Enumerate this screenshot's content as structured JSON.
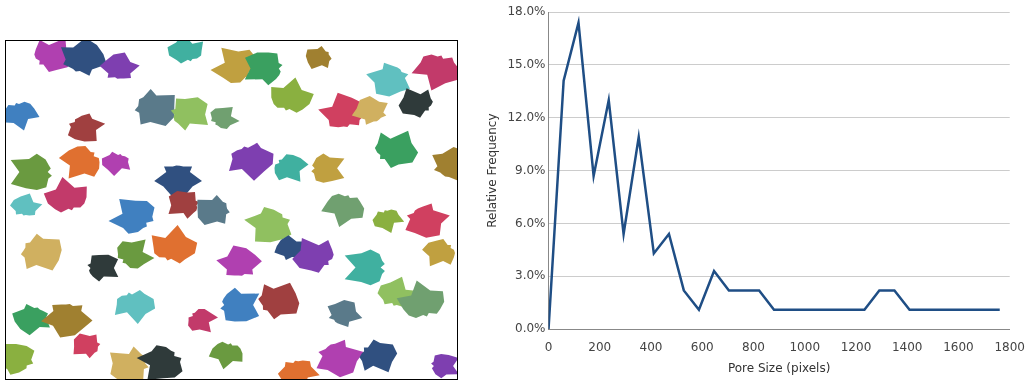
{
  "chart_data": {
    "type": "line",
    "x_label": "Pore Size (pixels)",
    "y_label": "Relative Frequency",
    "x": [
      0,
      59,
      117,
      176,
      235,
      293,
      352,
      411,
      470,
      528,
      587,
      646,
      704,
      763,
      822,
      880,
      939,
      998,
      1057,
      1115,
      1174,
      1233,
      1291,
      1350,
      1409,
      1467,
      1526,
      1585,
      1643,
      1702,
      1761
    ],
    "values": [
      0,
      14.1,
      17.4,
      8.7,
      13.0,
      5.4,
      10.9,
      4.3,
      5.4,
      2.2,
      1.1,
      3.3,
      2.2,
      2.2,
      2.2,
      1.1,
      1.1,
      1.1,
      1.1,
      1.1,
      1.1,
      1.1,
      2.2,
      2.2,
      1.1,
      1.1,
      1.1,
      1.1,
      1.1,
      1.1,
      1.1
    ],
    "color": "#1f4e85",
    "marker": "none",
    "xlim": [
      0,
      1800
    ],
    "xticks": [
      0,
      200,
      400,
      600,
      800,
      1000,
      1200,
      1400,
      1600,
      1800
    ],
    "ylim": [
      0,
      18
    ],
    "yticks": [
      {
        "value": 0,
        "label": "0.0%"
      },
      {
        "value": 3,
        "label": "3.0%"
      },
      {
        "value": 6,
        "label": "6.0%"
      },
      {
        "value": 9,
        "label": "9.0%"
      },
      {
        "value": 12,
        "label": "12.0%"
      },
      {
        "value": 15,
        "label": "15.0%"
      },
      {
        "value": 18,
        "label": "18.0%"
      }
    ],
    "grid": true
  }
}
